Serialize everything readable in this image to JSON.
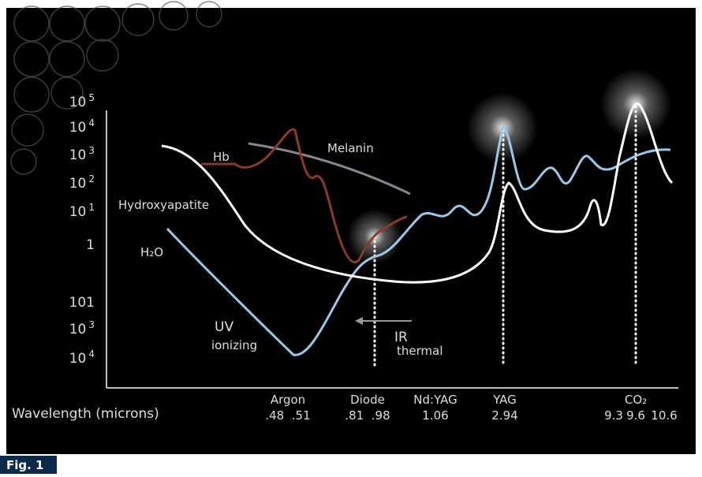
{
  "y_labels": [
    {
      "base": "10",
      "exp": "5"
    },
    {
      "base": "10",
      "exp": "4"
    },
    {
      "base": "10",
      "exp": "3"
    },
    {
      "base": "10",
      "exp": "2"
    },
    {
      "base": "10",
      "exp": "1"
    },
    {
      "base": "1"
    },
    {
      "base": "101"
    },
    {
      "base": "10",
      "exp": "3"
    },
    {
      "base": "10",
      "exp": "4"
    }
  ],
  "curve_labels": {
    "hb": "Hb",
    "melanin": "Melanin",
    "hydroxyapatite": "Hydroxyapatite",
    "h2o": "H₂O",
    "uv": "UV",
    "uv_sub": "ionizing",
    "ir": "IR",
    "ir_sub": "thermal"
  },
  "x_axis": {
    "title": "Wavelength (microns)",
    "lasers": [
      {
        "name": "Argon",
        "values": ".48  .51"
      },
      {
        "name": "Diode",
        "values": ".81  .98"
      },
      {
        "name": "Nd:YAG",
        "values": "1.06"
      },
      {
        "name": "YAG",
        "values": "2.94"
      },
      {
        "name": "CO₂",
        "values": [
          "9.3",
          "9.6",
          "10.6"
        ]
      }
    ]
  },
  "caption": "Fig. 1"
}
